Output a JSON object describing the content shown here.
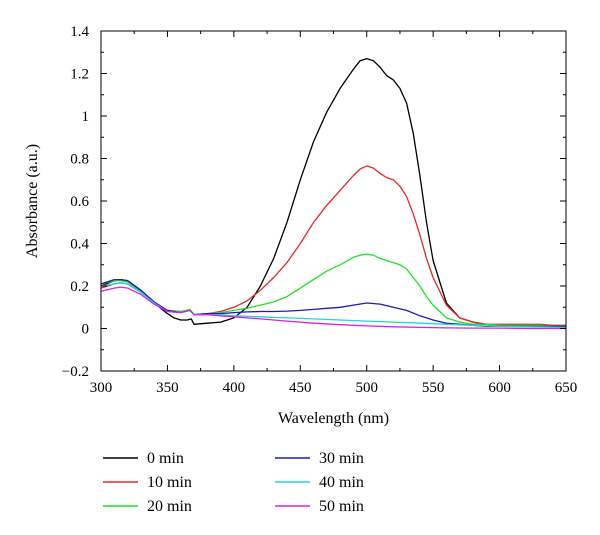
{
  "chart_data": {
    "type": "line",
    "title": "",
    "xlabel": "Wavelength (nm)",
    "ylabel": "Absorbance (a.u.)",
    "xlim": [
      300,
      650
    ],
    "ylim": [
      -0.2,
      1.4
    ],
    "xticks": [
      300,
      350,
      400,
      450,
      500,
      550,
      600,
      650
    ],
    "xtick_labels": [
      "300",
      "350",
      "400",
      "450",
      "500",
      "550",
      "600",
      "650"
    ],
    "yticks": [
      -0.2,
      0,
      0.2,
      0.4,
      0.6,
      0.8,
      1,
      1.2,
      1.4
    ],
    "ytick_labels": [
      "−0.2",
      "0",
      "0.2",
      "0.4",
      "0.6",
      "0.8",
      "1",
      "1.2",
      "1.4"
    ],
    "grid": false,
    "legend": "below, two columns",
    "series": [
      {
        "name": "0 min",
        "color": "#000000",
        "x": [
          300,
          310,
          315,
          320,
          330,
          340,
          350,
          355,
          360,
          365,
          368,
          370,
          380,
          390,
          400,
          410,
          420,
          430,
          440,
          450,
          460,
          470,
          480,
          490,
          495,
          500,
          505,
          510,
          515,
          520,
          525,
          530,
          535,
          540,
          545,
          550,
          560,
          570,
          580,
          590,
          600,
          610,
          620,
          630,
          640,
          650
        ],
        "y": [
          0.2,
          0.225,
          0.23,
          0.225,
          0.18,
          0.12,
          0.07,
          0.05,
          0.04,
          0.04,
          0.045,
          0.02,
          0.025,
          0.03,
          0.05,
          0.1,
          0.2,
          0.33,
          0.5,
          0.7,
          0.88,
          1.02,
          1.13,
          1.22,
          1.26,
          1.27,
          1.26,
          1.23,
          1.19,
          1.17,
          1.13,
          1.06,
          0.92,
          0.72,
          0.5,
          0.32,
          0.12,
          0.05,
          0.03,
          0.02,
          0.015,
          0.015,
          0.015,
          0.01,
          0.01,
          0.01
        ]
      },
      {
        "name": "10 min",
        "color": "#e8262b",
        "x": [
          300,
          310,
          315,
          320,
          330,
          340,
          350,
          360,
          367,
          370,
          380,
          390,
          400,
          410,
          420,
          430,
          440,
          450,
          460,
          470,
          480,
          490,
          495,
          500,
          505,
          510,
          515,
          520,
          525,
          530,
          535,
          540,
          545,
          550,
          560,
          570,
          580,
          590,
          600,
          610,
          620,
          630,
          640,
          650
        ],
        "y": [
          0.19,
          0.21,
          0.215,
          0.21,
          0.17,
          0.12,
          0.085,
          0.08,
          0.085,
          0.065,
          0.07,
          0.08,
          0.1,
          0.13,
          0.18,
          0.24,
          0.31,
          0.4,
          0.5,
          0.58,
          0.65,
          0.72,
          0.75,
          0.765,
          0.755,
          0.73,
          0.71,
          0.7,
          0.67,
          0.62,
          0.54,
          0.44,
          0.33,
          0.24,
          0.11,
          0.05,
          0.03,
          0.02,
          0.02,
          0.02,
          0.02,
          0.02,
          0.015,
          0.015
        ]
      },
      {
        "name": "20 min",
        "color": "#22e024",
        "x": [
          300,
          310,
          315,
          320,
          330,
          340,
          350,
          360,
          367,
          370,
          380,
          390,
          400,
          410,
          420,
          430,
          440,
          450,
          460,
          470,
          480,
          490,
          495,
          500,
          505,
          510,
          515,
          520,
          525,
          530,
          535,
          540,
          545,
          550,
          560,
          570,
          580,
          590,
          600,
          610,
          620,
          630,
          640,
          650
        ],
        "y": [
          0.21,
          0.225,
          0.225,
          0.22,
          0.175,
          0.12,
          0.085,
          0.08,
          0.09,
          0.065,
          0.07,
          0.075,
          0.085,
          0.095,
          0.11,
          0.125,
          0.15,
          0.19,
          0.23,
          0.27,
          0.3,
          0.335,
          0.345,
          0.35,
          0.345,
          0.33,
          0.32,
          0.31,
          0.3,
          0.28,
          0.24,
          0.2,
          0.15,
          0.11,
          0.05,
          0.03,
          0.02,
          0.02,
          0.015,
          0.015,
          0.015,
          0.015,
          0.01,
          0.01
        ]
      },
      {
        "name": "30 min",
        "color": "#1c1cb8",
        "x": [
          300,
          310,
          315,
          320,
          330,
          340,
          350,
          360,
          367,
          370,
          380,
          390,
          400,
          410,
          420,
          430,
          440,
          450,
          460,
          470,
          480,
          490,
          500,
          510,
          520,
          530,
          540,
          550,
          560,
          570,
          580,
          590,
          600,
          610,
          620,
          630,
          640,
          650
        ],
        "y": [
          0.21,
          0.23,
          0.23,
          0.225,
          0.18,
          0.125,
          0.085,
          0.075,
          0.085,
          0.065,
          0.07,
          0.07,
          0.075,
          0.078,
          0.08,
          0.08,
          0.082,
          0.085,
          0.09,
          0.095,
          0.1,
          0.11,
          0.12,
          0.115,
          0.1,
          0.085,
          0.06,
          0.04,
          0.025,
          0.02,
          0.015,
          0.01,
          0.01,
          0.01,
          0.01,
          0.01,
          0.01,
          0.01
        ]
      },
      {
        "name": "40 min",
        "color": "#22d3e0",
        "x": [
          300,
          310,
          315,
          320,
          330,
          340,
          350,
          360,
          367,
          370,
          380,
          390,
          400,
          420,
          440,
          460,
          480,
          500,
          520,
          540,
          560,
          580,
          600,
          620,
          650
        ],
        "y": [
          0.2,
          0.21,
          0.215,
          0.21,
          0.17,
          0.12,
          0.08,
          0.075,
          0.085,
          0.065,
          0.065,
          0.065,
          0.06,
          0.055,
          0.05,
          0.045,
          0.04,
          0.035,
          0.03,
          0.025,
          0.02,
          0.015,
          0.01,
          0.008,
          0.005
        ]
      },
      {
        "name": "50 min",
        "color": "#dc22e0",
        "x": [
          300,
          310,
          315,
          320,
          330,
          340,
          350,
          360,
          367,
          370,
          380,
          390,
          400,
          420,
          440,
          460,
          480,
          500,
          520,
          540,
          560,
          580,
          600,
          620,
          650
        ],
        "y": [
          0.175,
          0.19,
          0.195,
          0.19,
          0.16,
          0.115,
          0.08,
          0.075,
          0.085,
          0.065,
          0.065,
          0.06,
          0.055,
          0.045,
          0.035,
          0.025,
          0.018,
          0.012,
          0.008,
          0.005,
          0.003,
          0.002,
          0.002,
          0.0,
          0.0
        ]
      }
    ]
  }
}
